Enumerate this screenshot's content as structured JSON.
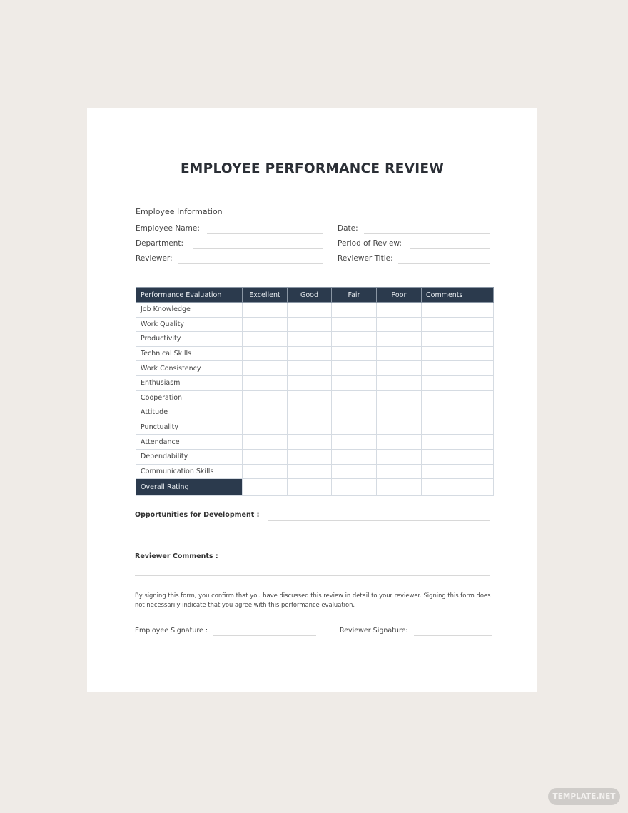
{
  "document": {
    "title": "EMPLOYEE PERFORMANCE REVIEW",
    "employee_info": {
      "heading": "Employee Information",
      "fields_left": [
        "Employee Name:",
        "Department:",
        "Reviewer:"
      ],
      "fields_right": [
        "Date:",
        "Period of Review:",
        "Reviewer Title:"
      ]
    },
    "table": {
      "headers": [
        "Performance Evaluation",
        "Excellent",
        "Good",
        "Fair",
        "Poor",
        "Comments"
      ],
      "rows": [
        "Job Knowledge",
        "Work Quality",
        "Productivity",
        "Technical Skills",
        "Work Consistency",
        "Enthusiasm",
        "Cooperation",
        "Attitude",
        "Punctuality",
        "Attendance",
        "Dependability",
        "Communication Skills"
      ],
      "overall": "Overall Rating"
    },
    "opportunities_label": "Opportunities for Development :",
    "reviewer_comments_label": "Reviewer Comments :",
    "disclaimer": "By signing this form, you confirm that you have discussed this review in detail to your reviewer. Signing this form does not necessarily indicate that you agree with this performance evaluation.",
    "employee_signature_label": "Employee Signature :",
    "reviewer_signature_label": "Reviewer Signature:"
  },
  "watermark": "TEMPLATE.NET",
  "colors": {
    "header_bg": "#2b3a4d",
    "background": "#efebe7"
  }
}
